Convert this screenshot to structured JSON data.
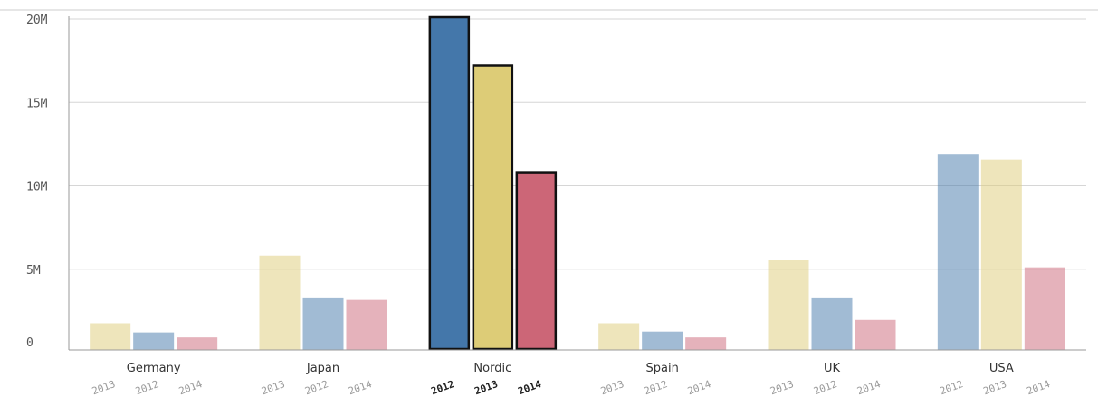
{
  "chart_data": {
    "type": "bar",
    "categories": [
      "Germany",
      "Japan",
      "Nordic",
      "Spain",
      "UK",
      "USA"
    ],
    "y_ticks": [
      "0",
      "5M",
      "10M",
      "15M",
      "20M"
    ],
    "ylim": [
      0,
      20000000
    ],
    "grid": true,
    "selected_category": "Nordic",
    "colors": {
      "2012": "#4477aa",
      "2013": "#ddcc77",
      "2014": "#cc6677"
    },
    "bars": [
      {
        "category": "Germany",
        "year": "2013",
        "value": 1600000
      },
      {
        "category": "Germany",
        "year": "2012",
        "value": 1050000
      },
      {
        "category": "Germany",
        "year": "2014",
        "value": 750000
      },
      {
        "category": "Japan",
        "year": "2013",
        "value": 5650000
      },
      {
        "category": "Japan",
        "year": "2012",
        "value": 3150000
      },
      {
        "category": "Japan",
        "year": "2014",
        "value": 3000000
      },
      {
        "category": "Nordic",
        "year": "2012",
        "value": 20000000
      },
      {
        "category": "Nordic",
        "year": "2013",
        "value": 17100000
      },
      {
        "category": "Nordic",
        "year": "2014",
        "value": 10700000
      },
      {
        "category": "Spain",
        "year": "2013",
        "value": 1600000
      },
      {
        "category": "Spain",
        "year": "2012",
        "value": 1100000
      },
      {
        "category": "Spain",
        "year": "2014",
        "value": 750000
      },
      {
        "category": "UK",
        "year": "2013",
        "value": 5400000
      },
      {
        "category": "UK",
        "year": "2012",
        "value": 3150000
      },
      {
        "category": "UK",
        "year": "2014",
        "value": 1800000
      },
      {
        "category": "USA",
        "year": "2012",
        "value": 11750000
      },
      {
        "category": "USA",
        "year": "2013",
        "value": 11400000
      },
      {
        "category": "USA",
        "year": "2014",
        "value": 4950000
      }
    ]
  }
}
